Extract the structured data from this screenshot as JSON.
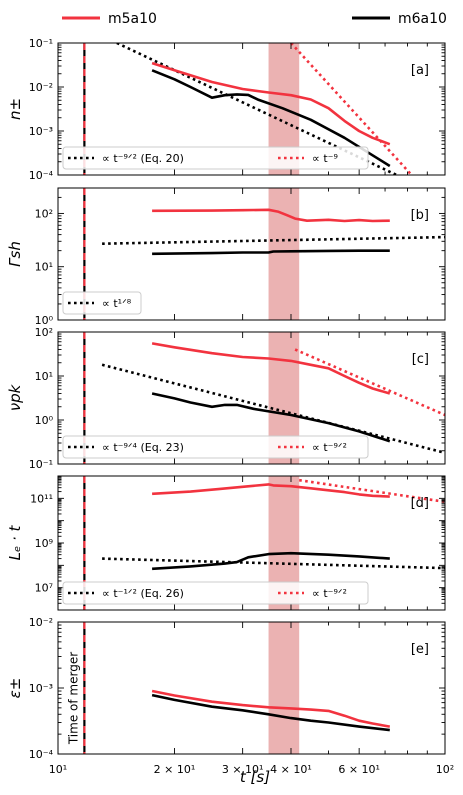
{
  "legend": {
    "items": [
      {
        "label": "m5a10",
        "color": "#f2333f"
      },
      {
        "label": "m6a10",
        "color": "#000000"
      }
    ]
  },
  "axes": {
    "xlabel": "t [s]",
    "xscale": "log",
    "xlim": [
      10,
      100
    ],
    "xticks": [
      {
        "v": 10,
        "label": "10¹"
      },
      {
        "v": 20,
        "label": "2 × 10¹"
      },
      {
        "v": 30,
        "label": "3 × 10¹"
      },
      {
        "v": 40,
        "label": "4 × 10¹"
      },
      {
        "v": 60,
        "label": "6 × 10¹"
      },
      {
        "v": 100,
        "label": "10²"
      }
    ],
    "merger_time": 11.7,
    "merger_label": "Time of merger",
    "band": [
      35,
      42
    ],
    "band_color": "#e8a4a4"
  },
  "colors": {
    "m5a10": "#f2333f",
    "m6a10": "#000000"
  },
  "chart_data": [
    {
      "tag": "[a]",
      "ylabel": "n±",
      "yscale": "log",
      "ylim": [
        0.0001,
        0.1
      ],
      "yticks": [
        {
          "v": 0.0001,
          "label": "10⁻⁴"
        },
        {
          "v": 0.001,
          "label": "10⁻³"
        },
        {
          "v": 0.01,
          "label": "10⁻²"
        },
        {
          "v": 0.1,
          "label": "10⁻¹"
        }
      ],
      "series": [
        {
          "name": "m5a10",
          "style": "solid",
          "points": [
            [
              17.5,
              0.035
            ],
            [
              20,
              0.024
            ],
            [
              25,
              0.013
            ],
            [
              30,
              0.009
            ],
            [
              35,
              0.0075
            ],
            [
              40,
              0.0065
            ],
            [
              45,
              0.0052
            ],
            [
              50,
              0.0033
            ],
            [
              55,
              0.0017
            ],
            [
              60,
              0.001
            ],
            [
              65,
              0.0007
            ],
            [
              72,
              0.0005
            ]
          ]
        },
        {
          "name": "m6a10",
          "style": "solid",
          "points": [
            [
              17.5,
              0.024
            ],
            [
              20,
              0.015
            ],
            [
              22,
              0.01
            ],
            [
              25,
              0.0057
            ],
            [
              27,
              0.0065
            ],
            [
              29,
              0.0068
            ],
            [
              31,
              0.0066
            ],
            [
              33,
              0.0051
            ],
            [
              38,
              0.0033
            ],
            [
              45,
              0.0018
            ],
            [
              55,
              0.0007
            ],
            [
              65,
              0.00028
            ],
            [
              72,
              0.00016
            ]
          ]
        }
      ],
      "refs": [
        {
          "label": "∝ t⁻⁹ᐟ² (Eq. 20)",
          "color": "#000000",
          "points": [
            [
              14.2,
              0.1
            ],
            [
              75,
              0.0001
            ]
          ]
        },
        {
          "label": "∝ t⁻⁹",
          "color": "#f2333f",
          "points": [
            [
              40,
              0.1
            ],
            [
              82,
              0.0001
            ]
          ]
        }
      ]
    },
    {
      "tag": "[b]",
      "ylabel": "Γsh",
      "yscale": "log",
      "ylim": [
        1,
        300
      ],
      "yticks": [
        {
          "v": 1,
          "label": "10⁰"
        },
        {
          "v": 10,
          "label": "10¹"
        },
        {
          "v": 100,
          "label": "10²"
        }
      ],
      "series": [
        {
          "name": "m5a10",
          "style": "solid",
          "points": [
            [
              17.5,
              112
            ],
            [
              25,
              113
            ],
            [
              30,
              115
            ],
            [
              35,
              117
            ],
            [
              37,
              108
            ],
            [
              39,
              93
            ],
            [
              41,
              80
            ],
            [
              44,
              73
            ],
            [
              50,
              76
            ],
            [
              55,
              72
            ],
            [
              60,
              75
            ],
            [
              65,
              72
            ],
            [
              72,
              73
            ]
          ]
        },
        {
          "name": "m6a10",
          "style": "solid",
          "points": [
            [
              17.5,
              17.5
            ],
            [
              25,
              18
            ],
            [
              30,
              18.5
            ],
            [
              35,
              18.5
            ],
            [
              36,
              19.3
            ],
            [
              40,
              19.5
            ],
            [
              50,
              19.8
            ],
            [
              60,
              20
            ],
            [
              72,
              20
            ]
          ]
        }
      ],
      "refs": [
        {
          "label": "∝ t¹ᐟ⁸",
          "color": "#000000",
          "points": [
            [
              13,
              27
            ],
            [
              100,
              36
            ]
          ]
        }
      ]
    },
    {
      "tag": "[c]",
      "ylabel": "νpk",
      "yscale": "log",
      "ylim": [
        0.1,
        100
      ],
      "yticks": [
        {
          "v": 0.1,
          "label": "10⁻¹"
        },
        {
          "v": 1,
          "label": "10⁰"
        },
        {
          "v": 10,
          "label": "10¹"
        },
        {
          "v": 100,
          "label": "10²"
        }
      ],
      "series": [
        {
          "name": "m5a10",
          "style": "solid",
          "points": [
            [
              17.5,
              55
            ],
            [
              20,
              45
            ],
            [
              25,
              33
            ],
            [
              30,
              27
            ],
            [
              35,
              25
            ],
            [
              40,
              22
            ],
            [
              45,
              18
            ],
            [
              50,
              15
            ],
            [
              55,
              10
            ],
            [
              60,
              7
            ],
            [
              65,
              5.2
            ],
            [
              72,
              4
            ]
          ]
        },
        {
          "name": "m6a10",
          "style": "solid",
          "points": [
            [
              17.5,
              4
            ],
            [
              20,
              3.1
            ],
            [
              22,
              2.5
            ],
            [
              25,
              2
            ],
            [
              27,
              2.2
            ],
            [
              29,
              2.2
            ],
            [
              32,
              1.8
            ],
            [
              40,
              1.3
            ],
            [
              50,
              0.85
            ],
            [
              60,
              0.55
            ],
            [
              72,
              0.33
            ]
          ]
        }
      ],
      "refs": [
        {
          "label": "∝ t⁻⁹ᐟ⁴ (Eq. 23)",
          "color": "#000000",
          "points": [
            [
              13,
              18
            ],
            [
              100,
              0.18
            ]
          ]
        },
        {
          "label": "∝ t⁻⁹ᐟ²",
          "color": "#f2333f",
          "points": [
            [
              41,
              40
            ],
            [
              100,
              1.3
            ]
          ]
        }
      ]
    },
    {
      "tag": "[d]",
      "ylabel": "Lₑ · t",
      "yscale": "log",
      "ylim": [
        1000000,
        1000000000000
      ],
      "yticks": [
        {
          "v": 10000000,
          "label": "10⁷"
        },
        {
          "v": 1000000000,
          "label": "10⁹"
        },
        {
          "v": 100000000000,
          "label": "10¹¹"
        }
      ],
      "series": [
        {
          "name": "m5a10",
          "style": "solid",
          "points": [
            [
              17.5,
              160000000000
            ],
            [
              22,
              200000000000
            ],
            [
              26,
              260000000000
            ],
            [
              30,
              330000000000
            ],
            [
              35,
              420000000000
            ],
            [
              36,
              380000000000
            ],
            [
              40,
              350000000000
            ],
            [
              45,
              280000000000
            ],
            [
              50,
              230000000000
            ],
            [
              55,
              190000000000
            ],
            [
              60,
              150000000000
            ],
            [
              65,
              130000000000
            ],
            [
              72,
              120000000000
            ]
          ]
        },
        {
          "name": "m6a10",
          "style": "solid",
          "points": [
            [
              17.5,
              70000000
            ],
            [
              22,
              90000000
            ],
            [
              27,
              120000000
            ],
            [
              29,
              140000000
            ],
            [
              31,
              230000000
            ],
            [
              35,
              320000000
            ],
            [
              40,
              350000000
            ],
            [
              50,
              300000000
            ],
            [
              60,
              250000000
            ],
            [
              72,
              200000000
            ]
          ]
        }
      ],
      "refs": [
        {
          "label": "∝ t⁻¹ᐟ² (Eq. 26)",
          "color": "#000000",
          "points": [
            [
              13,
              200000000
            ],
            [
              100,
              75000000
            ]
          ]
        },
        {
          "label": "∝ t⁻⁹ᐟ²",
          "color": "#f2333f",
          "points": [
            [
              42,
              650000000000
            ],
            [
              100,
              70000000000
            ]
          ]
        }
      ]
    },
    {
      "tag": "[e]",
      "ylabel": "ε±",
      "yscale": "log",
      "ylim": [
        0.0001,
        0.01
      ],
      "yticks": [
        {
          "v": 0.0001,
          "label": "10⁻⁴"
        },
        {
          "v": 0.001,
          "label": "10⁻³"
        },
        {
          "v": 0.01,
          "label": "10⁻²"
        }
      ],
      "series": [
        {
          "name": "m5a10",
          "style": "solid",
          "points": [
            [
              17.5,
              0.0009
            ],
            [
              20,
              0.00077
            ],
            [
              25,
              0.00062
            ],
            [
              30,
              0.00055
            ],
            [
              35,
              0.00051
            ],
            [
              40,
              0.00049
            ],
            [
              45,
              0.00047
            ],
            [
              50,
              0.00045
            ],
            [
              55,
              0.00038
            ],
            [
              60,
              0.00032
            ],
            [
              65,
              0.00029
            ],
            [
              72,
              0.00026
            ]
          ]
        },
        {
          "name": "m6a10",
          "style": "solid",
          "points": [
            [
              17.5,
              0.00078
            ],
            [
              20,
              0.00066
            ],
            [
              25,
              0.00052
            ],
            [
              30,
              0.00046
            ],
            [
              35,
              0.0004
            ],
            [
              40,
              0.00035
            ],
            [
              45,
              0.00032
            ],
            [
              50,
              0.0003
            ],
            [
              60,
              0.00026
            ],
            [
              72,
              0.00023
            ]
          ]
        }
      ],
      "refs": []
    }
  ]
}
